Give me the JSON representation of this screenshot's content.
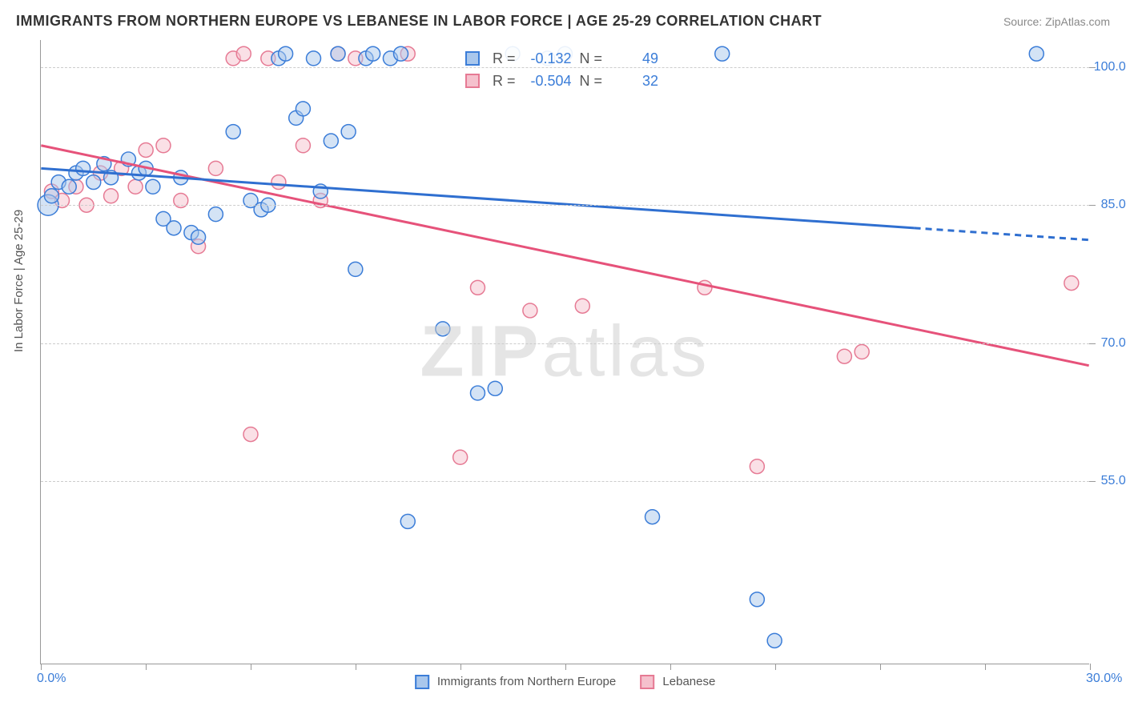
{
  "title": "IMMIGRANTS FROM NORTHERN EUROPE VS LEBANESE IN LABOR FORCE | AGE 25-29 CORRELATION CHART",
  "source": "Source: ZipAtlas.com",
  "watermark_bold": "ZIP",
  "watermark_rest": "atlas",
  "ylabel": "In Labor Force | Age 25-29",
  "chart": {
    "type": "scatter",
    "xlim": [
      0.0,
      30.0
    ],
    "ylim": [
      35.0,
      103.0
    ],
    "xtick_labels": [
      "0.0%",
      "30.0%"
    ],
    "xtick_positions_minor": [
      0,
      3,
      6,
      9,
      12,
      15,
      18,
      21,
      24,
      27,
      30
    ],
    "ytick_labels": [
      "55.0%",
      "70.0%",
      "85.0%",
      "100.0%"
    ],
    "ytick_positions": [
      55,
      70,
      85,
      100
    ],
    "grid_color": "#cccccc",
    "background_color": "#ffffff",
    "axis_color": "#999999",
    "tick_label_color": "#3b7dd8",
    "ylabel_color": "#555555",
    "title_color": "#333333",
    "title_fontsize": 18,
    "label_fontsize": 15,
    "tick_fontsize": 16,
    "marker_radius": 9,
    "marker_opacity": 0.5,
    "marker_stroke_width": 1.5,
    "trendline_width": 3,
    "series": [
      {
        "name": "Immigrants from Northern Europe",
        "fill_color": "#a9c7ec",
        "stroke_color": "#3b7dd8",
        "trend_color": "#2f6fd0",
        "R": "-0.132",
        "N": "49",
        "trend": {
          "x1": 0.0,
          "y1": 89.0,
          "x2": 25.0,
          "y2": 82.5,
          "x2_dash": 30.0,
          "y2_dash": 81.2
        },
        "points": [
          {
            "x": 0.2,
            "y": 85.0,
            "r": 13
          },
          {
            "x": 0.3,
            "y": 86.0
          },
          {
            "x": 0.5,
            "y": 87.5
          },
          {
            "x": 0.8,
            "y": 87.0
          },
          {
            "x": 1.0,
            "y": 88.5
          },
          {
            "x": 1.2,
            "y": 89.0
          },
          {
            "x": 1.5,
            "y": 87.5
          },
          {
            "x": 1.8,
            "y": 89.5
          },
          {
            "x": 2.0,
            "y": 88.0
          },
          {
            "x": 2.5,
            "y": 90.0
          },
          {
            "x": 2.8,
            "y": 88.5
          },
          {
            "x": 3.0,
            "y": 89.0
          },
          {
            "x": 3.2,
            "y": 87.0
          },
          {
            "x": 3.5,
            "y": 83.5
          },
          {
            "x": 3.8,
            "y": 82.5
          },
          {
            "x": 4.0,
            "y": 88.0
          },
          {
            "x": 4.3,
            "y": 82.0
          },
          {
            "x": 4.5,
            "y": 81.5
          },
          {
            "x": 5.0,
            "y": 84.0
          },
          {
            "x": 5.5,
            "y": 93.0
          },
          {
            "x": 6.0,
            "y": 85.5
          },
          {
            "x": 6.3,
            "y": 84.5
          },
          {
            "x": 6.5,
            "y": 85.0
          },
          {
            "x": 6.8,
            "y": 101.0
          },
          {
            "x": 7.0,
            "y": 101.5
          },
          {
            "x": 7.3,
            "y": 94.5
          },
          {
            "x": 7.5,
            "y": 95.5
          },
          {
            "x": 7.8,
            "y": 101.0
          },
          {
            "x": 8.0,
            "y": 86.5
          },
          {
            "x": 8.3,
            "y": 92.0
          },
          {
            "x": 8.5,
            "y": 101.5
          },
          {
            "x": 8.8,
            "y": 93.0
          },
          {
            "x": 9.0,
            "y": 78.0
          },
          {
            "x": 9.3,
            "y": 101.0
          },
          {
            "x": 9.5,
            "y": 101.5
          },
          {
            "x": 10.0,
            "y": 101.0
          },
          {
            "x": 10.3,
            "y": 101.5
          },
          {
            "x": 10.5,
            "y": 50.5
          },
          {
            "x": 11.5,
            "y": 71.5
          },
          {
            "x": 12.5,
            "y": 64.5
          },
          {
            "x": 13.0,
            "y": 65.0
          },
          {
            "x": 13.5,
            "y": 101.5
          },
          {
            "x": 14.5,
            "y": 101.0
          },
          {
            "x": 15.0,
            "y": 101.5
          },
          {
            "x": 17.5,
            "y": 51.0
          },
          {
            "x": 19.5,
            "y": 101.5
          },
          {
            "x": 20.5,
            "y": 42.0
          },
          {
            "x": 21.0,
            "y": 37.5
          },
          {
            "x": 28.5,
            "y": 101.5
          }
        ]
      },
      {
        "name": "Lebanese",
        "fill_color": "#f5c1cd",
        "stroke_color": "#e67a94",
        "trend_color": "#e6527a",
        "R": "-0.504",
        "N": "32",
        "trend": {
          "x1": 0.0,
          "y1": 91.5,
          "x2": 30.0,
          "y2": 67.5
        },
        "points": [
          {
            "x": 0.3,
            "y": 86.5
          },
          {
            "x": 0.6,
            "y": 85.5
          },
          {
            "x": 1.0,
            "y": 87.0
          },
          {
            "x": 1.3,
            "y": 85.0
          },
          {
            "x": 1.7,
            "y": 88.5
          },
          {
            "x": 2.0,
            "y": 86.0
          },
          {
            "x": 2.3,
            "y": 89.0
          },
          {
            "x": 2.7,
            "y": 87.0
          },
          {
            "x": 3.0,
            "y": 91.0
          },
          {
            "x": 3.5,
            "y": 91.5
          },
          {
            "x": 4.0,
            "y": 85.5
          },
          {
            "x": 4.5,
            "y": 80.5
          },
          {
            "x": 5.0,
            "y": 89.0
          },
          {
            "x": 5.5,
            "y": 101.0
          },
          {
            "x": 5.8,
            "y": 101.5
          },
          {
            "x": 6.0,
            "y": 60.0
          },
          {
            "x": 6.5,
            "y": 101.0
          },
          {
            "x": 6.8,
            "y": 87.5
          },
          {
            "x": 7.5,
            "y": 91.5
          },
          {
            "x": 8.0,
            "y": 85.5
          },
          {
            "x": 8.5,
            "y": 101.5
          },
          {
            "x": 9.0,
            "y": 101.0
          },
          {
            "x": 10.5,
            "y": 101.5
          },
          {
            "x": 12.0,
            "y": 57.5
          },
          {
            "x": 12.5,
            "y": 76.0
          },
          {
            "x": 14.0,
            "y": 73.5
          },
          {
            "x": 15.5,
            "y": 74.0
          },
          {
            "x": 19.0,
            "y": 76.0
          },
          {
            "x": 20.5,
            "y": 56.5
          },
          {
            "x": 23.0,
            "y": 68.5
          },
          {
            "x": 23.5,
            "y": 69.0
          },
          {
            "x": 29.5,
            "y": 76.5
          }
        ]
      }
    ]
  },
  "legend": {
    "series1_label": "Immigrants from Northern Europe",
    "series2_label": "Lebanese"
  },
  "stats_labels": {
    "r": "R =",
    "n": "N ="
  }
}
